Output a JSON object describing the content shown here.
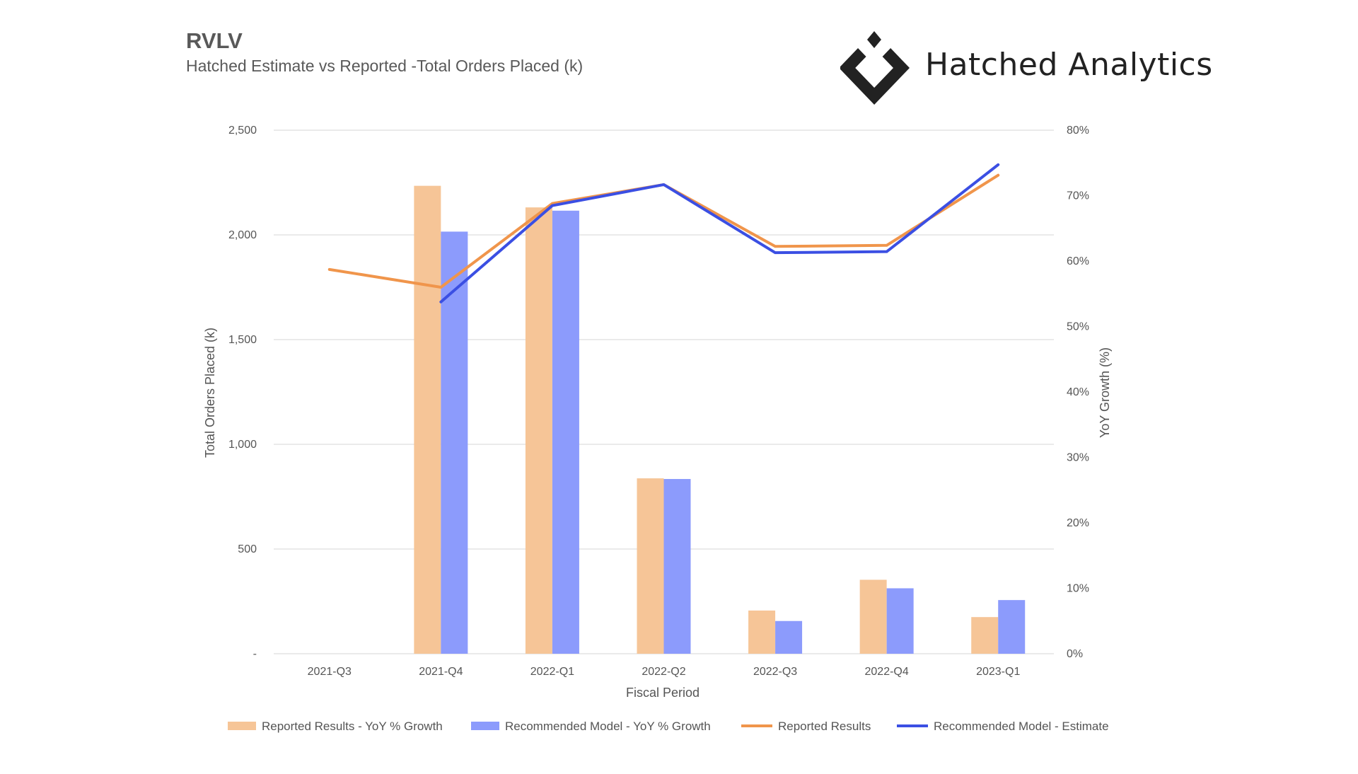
{
  "header": {
    "ticker": "RVLV",
    "subtitle": "Hatched Estimate vs Reported -Total Orders Placed (k)",
    "brand_name": "Hatched Analytics",
    "brand_icon": "hatched-diamond-logo"
  },
  "colors": {
    "reported_bar": "#F6C597",
    "model_bar": "#8C9BFC",
    "reported_line": "#F0954B",
    "model_line": "#3B4FE3",
    "grid": "#DDDDDD"
  },
  "chart_data": {
    "type": "bar",
    "xlabel": "Fiscal Period",
    "ylabel": "Total Orders Placed (k)",
    "y2label": "YoY Growth (%)",
    "categories": [
      "2021-Q3",
      "2021-Q4",
      "2022-Q1",
      "2022-Q2",
      "2022-Q3",
      "2022-Q4",
      "2023-Q1"
    ],
    "ylim": [
      0,
      2500
    ],
    "y_ticks": [
      0,
      500,
      1000,
      1500,
      2000,
      2500
    ],
    "y_tick_labels": [
      "-",
      "500",
      "1,000",
      "1,500",
      "2,000",
      "2,500"
    ],
    "y2lim": [
      0,
      80
    ],
    "y2_ticks": [
      0,
      10,
      20,
      30,
      40,
      50,
      60,
      70,
      80
    ],
    "y2_tick_labels": [
      "0%",
      "10%",
      "20%",
      "30%",
      "40%",
      "50%",
      "60%",
      "70%",
      "80%"
    ],
    "grid": true,
    "legend_position": "bottom",
    "series": [
      {
        "name": "Reported Results - YoY % Growth",
        "kind": "bar",
        "axis": "right",
        "values": [
          null,
          71.5,
          68.2,
          26.8,
          6.6,
          11.3,
          5.6
        ]
      },
      {
        "name": "Recommended Model - YoY % Growth",
        "kind": "bar",
        "axis": "right",
        "values": [
          null,
          64.5,
          67.7,
          26.7,
          5.0,
          10.0,
          8.2
        ]
      },
      {
        "name": "Reported Results",
        "kind": "line",
        "axis": "left",
        "values": [
          1835,
          1750,
          2150,
          2240,
          1945,
          1950,
          2285
        ]
      },
      {
        "name": "Recommended Model - Estimate",
        "kind": "line",
        "axis": "left",
        "values": [
          null,
          1680,
          2140,
          2240,
          1915,
          1920,
          2335
        ]
      }
    ]
  }
}
